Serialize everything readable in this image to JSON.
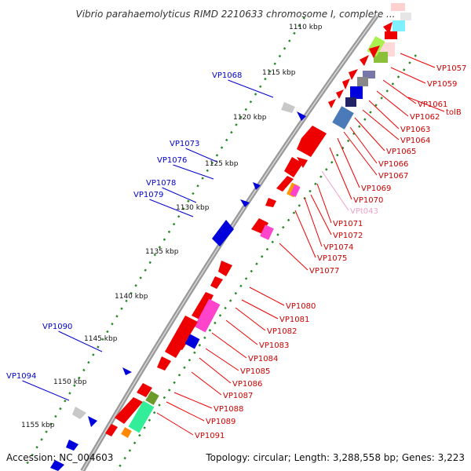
{
  "title": "Vibrio parahaemolyticus RIMD 2210633 chromosome I, complete ...",
  "footer": {
    "accession": "Accession: NC_004603",
    "summary": "Topology: circular; Length: 3,288,558 bp; Genes: 3,223"
  },
  "ticks": [
    "1110 kbp",
    "1115 kbp",
    "1120 kbp",
    "1125 kbp",
    "1130 kbp",
    "1135 kbp",
    "1140 kbp",
    "1145 kbp",
    "1150 kbp",
    "1155 kbp"
  ],
  "labels_right": [
    "VP1057",
    "VP1059",
    "tolB",
    "VP1061",
    "VP1062",
    "VP1063",
    "VP1064",
    "VP1065",
    "VP1066",
    "VP1067",
    "VP1069",
    "VP1070",
    "VPt043",
    "VP1071",
    "VP1072",
    "VP1074",
    "VP1075",
    "VP1077",
    "VP1080",
    "VP1081",
    "VP1082",
    "VP1083",
    "VP1084",
    "VP1085",
    "VP1086",
    "VP1087",
    "VP1088",
    "VP1089",
    "VP1091"
  ],
  "labels_left": [
    "VP1068",
    "VP1073",
    "VP1076",
    "VP1078",
    "VP1079",
    "VP1090",
    "VP1094"
  ],
  "colors": {
    "backbone": "#888888",
    "forward_gene": "#ee0000",
    "reverse_gene": "#0000dd",
    "rna": "#ff66cc",
    "gc_dots": "#2a8a2a",
    "label_right": "#cc0000",
    "label_left": "#0000cc"
  }
}
